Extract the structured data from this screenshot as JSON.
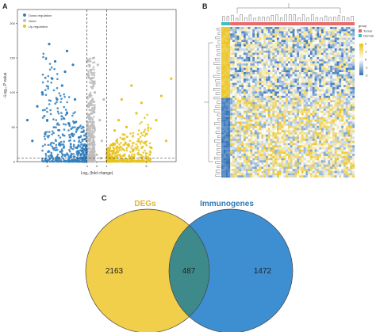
{
  "panel_labels": {
    "a": "A",
    "b": "B",
    "c": "C"
  },
  "chart_data": [
    {
      "type": "scatter",
      "title": "",
      "xlabel": "Log₂ (fold change)",
      "ylabel": "−Log₁₀ P value",
      "xlim": [
        -8,
        8
      ],
      "ylim": [
        0,
        220
      ],
      "x_ticks": [
        "-5",
        "-1",
        "0",
        "1",
        "5"
      ],
      "x_tick_values": [
        -5,
        -1,
        0,
        1,
        5
      ],
      "y_ticks": [
        "0",
        "50",
        "100",
        "150",
        "200"
      ],
      "y_tick_values": [
        0,
        50,
        100,
        150,
        200
      ],
      "thresholds": {
        "fold_change": [
          -1,
          1
        ],
        "p_value_line": 5
      },
      "grid": false,
      "legend_position": "top-left",
      "legend": [
        {
          "name": "Down-regulation",
          "color": "#2f7fc1"
        },
        {
          "name": "None",
          "color": "#bdbdbd"
        },
        {
          "name": "Up-regulation",
          "color": "#e8c21b"
        }
      ],
      "series": [
        {
          "name": "Down-regulation",
          "color": "#2f7fc1",
          "points": [
            [
              -2.5,
              40
            ],
            [
              -3,
              70
            ],
            [
              -4,
              90
            ],
            [
              -5,
              60
            ],
            [
              -3.5,
              110
            ],
            [
              -4.5,
              120
            ],
            [
              -6,
              80
            ],
            [
              -2,
              20
            ],
            [
              -2.8,
              55
            ],
            [
              -1.5,
              15
            ],
            [
              -5.5,
              100
            ],
            [
              -3.2,
              130
            ],
            [
              -6.5,
              30
            ],
            [
              -7,
              60
            ],
            [
              -4.2,
              145
            ],
            [
              -2.2,
              90
            ],
            [
              -1.8,
              35
            ],
            [
              -3.8,
              25
            ],
            [
              -5.2,
              40
            ],
            [
              -4.8,
              170
            ],
            [
              -3,
              160
            ],
            [
              -2.4,
              140
            ]
          ]
        },
        {
          "name": "None",
          "color": "#bdbdbd",
          "points": [
            [
              0,
              10
            ],
            [
              -0.5,
              40
            ],
            [
              0.5,
              30
            ],
            [
              -0.8,
              80
            ],
            [
              0.3,
              60
            ],
            [
              -0.2,
              100
            ],
            [
              0.7,
              90
            ],
            [
              -0.6,
              120
            ],
            [
              0.1,
              140
            ],
            [
              -0.3,
              150
            ],
            [
              0.4,
              5
            ],
            [
              -0.9,
              25
            ]
          ]
        },
        {
          "name": "Up-regulation",
          "color": "#e8c21b",
          "points": [
            [
              2,
              30
            ],
            [
              3,
              50
            ],
            [
              4,
              70
            ],
            [
              2.5,
              90
            ],
            [
              5,
              40
            ],
            [
              6,
              60
            ],
            [
              1.5,
              15
            ],
            [
              3.5,
              110
            ],
            [
              4.5,
              85
            ],
            [
              7.5,
              120
            ],
            [
              7,
              30
            ],
            [
              2.2,
              60
            ],
            [
              1.8,
              45
            ],
            [
              5.5,
              20
            ],
            [
              6.5,
              95
            ],
            [
              3.2,
              25
            ]
          ]
        }
      ]
    },
    {
      "type": "heatmap",
      "title": "",
      "legend_title": "group",
      "group_legend": [
        {
          "name": "Tumor",
          "color": "#e86a6a"
        },
        {
          "name": "Normal",
          "color": "#3fbfbf"
        }
      ],
      "color_scale": {
        "min": -2,
        "max": 2,
        "low_color": "#2f6fb7",
        "mid_color": "#ffffff",
        "high_color": "#e8c21b",
        "ticks": [
          "2",
          "1",
          "0",
          "-1",
          "-2"
        ]
      },
      "rows": 487,
      "columns_groups": [
        {
          "group": "Normal",
          "fraction": 0.07
        },
        {
          "group": "Tumor",
          "fraction": 0.93
        }
      ],
      "row_blocks": [
        {
          "pattern": "up-in-normal",
          "fraction": 0.47
        },
        {
          "pattern": "down-in-normal",
          "fraction": 0.53
        }
      ]
    },
    {
      "type": "venn",
      "sets": [
        {
          "name": "DEGs",
          "color": "#f2cf4a",
          "label_color": "#e0b52a",
          "only": 2163
        },
        {
          "name": "Immunogenes",
          "color": "#3d8fd1",
          "label_color": "#2e7bb8",
          "only": 1472
        }
      ],
      "intersection": 487,
      "intersection_color": "#3e8a8a",
      "labels": {
        "left": "2163",
        "middle": "487",
        "right": "1472"
      }
    }
  ]
}
